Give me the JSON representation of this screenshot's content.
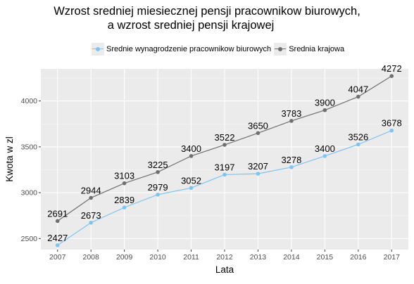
{
  "chart_data": {
    "type": "line",
    "title_line1": "Wzrost sredniej miesiecznej pensji pracownikow biurowych,",
    "title_line2": "a wzrost sredniej pensji krajowej",
    "xlabel": "Lata",
    "ylabel": "Kwota w zl",
    "x": [
      2007,
      2008,
      2009,
      2010,
      2011,
      2012,
      2013,
      2014,
      2015,
      2016,
      2017
    ],
    "y_ticks": [
      2500,
      3000,
      3500,
      4000
    ],
    "ylim": [
      2380,
      4350
    ],
    "grid": true,
    "legend_position": "top",
    "series": [
      {
        "name": "Srednie wynagrodzenie pracownikow biurowych",
        "color": "#7ec3f2",
        "values": [
          2427,
          2673,
          2839,
          2979,
          3052,
          3197,
          3207,
          3278,
          3400,
          3526,
          3678
        ]
      },
      {
        "name": "Srednia krajowa",
        "color": "#6f6f6f",
        "values": [
          2691,
          2944,
          3103,
          3225,
          3400,
          3522,
          3650,
          3783,
          3900,
          4047,
          4272
        ]
      }
    ]
  }
}
